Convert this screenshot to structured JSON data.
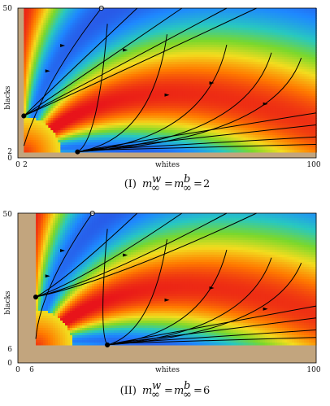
{
  "colors": {
    "tan_region": "#c2a57e",
    "frame": "#000000",
    "colormap": [
      "#e8141a",
      "#ff7a00",
      "#f3dc1e",
      "#7ad82c",
      "#28c8c0",
      "#1e88ff",
      "#2f3cd8"
    ]
  },
  "chart_data": [
    {
      "type": "phase-portrait",
      "caption_prefix": "(I)",
      "caption_formula": "m∞w = m∞b = 2",
      "xlabel": "whites",
      "ylabel": "blacks",
      "xlim": [
        0,
        100
      ],
      "ylim": [
        0,
        50
      ],
      "x_ticks": [
        "0",
        "2",
        "100"
      ],
      "y_ticks": [
        "0",
        "2",
        "50"
      ],
      "min_population": 2,
      "fixed_points": [
        {
          "x": 28,
          "y": 50,
          "style": "open"
        },
        {
          "x": 2,
          "y": 14,
          "style": "filled"
        },
        {
          "x": 20,
          "y": 2,
          "style": "filled"
        }
      ]
    },
    {
      "type": "phase-portrait",
      "caption_prefix": "(II)",
      "caption_formula": "m∞w = m∞b = 6",
      "xlabel": "whites",
      "ylabel": "blacks",
      "xlim": [
        0,
        100
      ],
      "ylim": [
        0,
        50
      ],
      "x_ticks": [
        "0",
        "6",
        "100"
      ],
      "y_ticks": [
        "0",
        "6",
        "50"
      ],
      "min_population": 6,
      "fixed_points": [
        {
          "x": 25,
          "y": 50,
          "style": "open"
        },
        {
          "x": 6,
          "y": 22,
          "style": "filled"
        },
        {
          "x": 30,
          "y": 6,
          "style": "filled"
        }
      ]
    }
  ]
}
